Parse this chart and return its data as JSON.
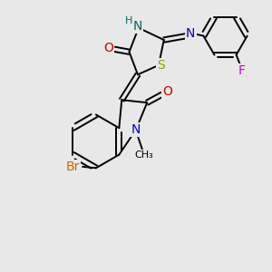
{
  "background_color": "#e8e8e8",
  "colors": {
    "bond": "#000000",
    "N": "#0000cc",
    "O": "#cc0000",
    "S": "#999900",
    "Br": "#cc6600",
    "F": "#cc00cc",
    "NH": "#006666"
  },
  "figsize": [
    3.0,
    3.0
  ],
  "dpi": 100
}
